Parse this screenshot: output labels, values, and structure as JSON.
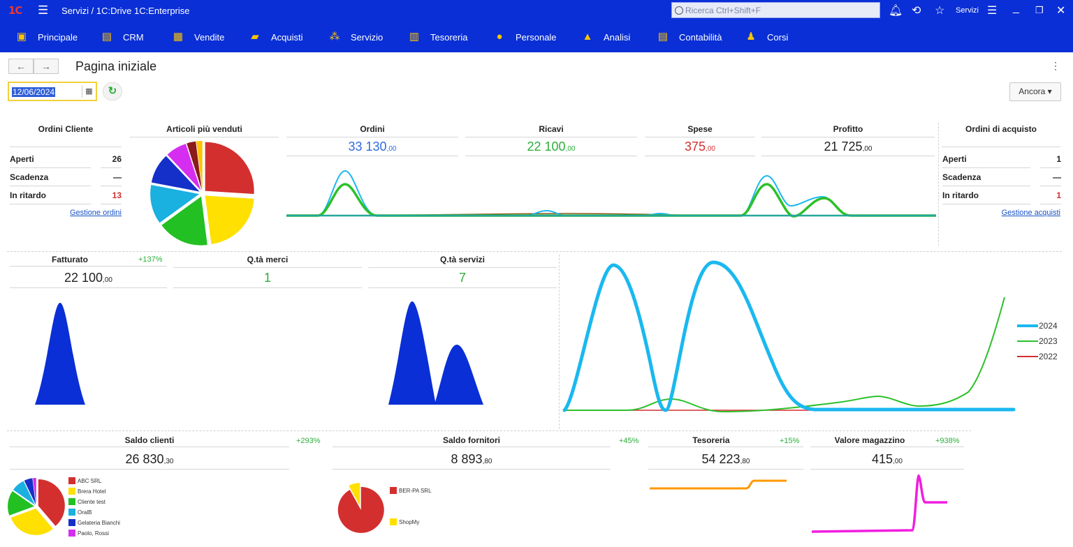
{
  "titlebar": {
    "logo": "1C",
    "title": "Servizi / 1C:Drive 1C:Enterprise",
    "search_placeholder": "Ricerca Ctrl+Shift+F",
    "services_label": "Servizi"
  },
  "menu": [
    {
      "label": "Principale",
      "icon": "briefcase-icon",
      "color": "#ffc400"
    },
    {
      "label": "CRM",
      "icon": "contacts-icon",
      "color": "#ffc400"
    },
    {
      "label": "Vendite",
      "icon": "cash-register-icon",
      "color": "#ffc400"
    },
    {
      "label": "Acquisti",
      "icon": "truck-icon",
      "color": "#ffc400"
    },
    {
      "label": "Servizio",
      "icon": "people-tree-icon",
      "color": "#ffc400"
    },
    {
      "label": "Tesoreria",
      "icon": "money-icon",
      "color": "#ffc400"
    },
    {
      "label": "Personale",
      "icon": "staff-icon",
      "color": "#ffc400"
    },
    {
      "label": "Analisi",
      "icon": "chart-icon",
      "color": "#ffc400"
    },
    {
      "label": "Contabilità",
      "icon": "ledger-icon",
      "color": "#ffc400"
    },
    {
      "label": "Corsi",
      "icon": "student-icon",
      "color": "#ffc400"
    }
  ],
  "page": {
    "title": "Pagina iniziale",
    "date": "12/06/2024",
    "more_label": "Ancora"
  },
  "ordini_cliente": {
    "title": "Ordini Cliente",
    "rows": [
      {
        "label": "Aperti",
        "value": "26",
        "color": "#222222"
      },
      {
        "label": "Scadenza",
        "value": "—",
        "color": "#222222"
      },
      {
        "label": "In ritardo",
        "value": "13",
        "color": "#d32f2f"
      }
    ],
    "link": "Gestione ordini"
  },
  "articoli": {
    "title": "Articoli più venduti"
  },
  "kpi_top": [
    {
      "title": "Ordini",
      "int": "33 130",
      "dec": ",00",
      "color": "#2f6be0"
    },
    {
      "title": "Ricavi",
      "int": "22 100",
      "dec": ",00",
      "color": "#2cae3a"
    },
    {
      "title": "Spese",
      "int": "375",
      "dec": ",00",
      "color": "#d32f2f"
    },
    {
      "title": "Profitto",
      "int": "21 725",
      "dec": ",00",
      "color": "#222222"
    }
  ],
  "ordini_acquisto": {
    "title": "Ordini di acquisto",
    "rows": [
      {
        "label": "Aperti",
        "value": "1",
        "color": "#222222"
      },
      {
        "label": "Scadenza",
        "value": "—",
        "color": "#222222"
      },
      {
        "label": "In ritardo",
        "value": "1",
        "color": "#d32f2f"
      }
    ],
    "link": "Gestione acquisti"
  },
  "fatturato": {
    "title": "Fatturato",
    "pct": "+137%",
    "int": "22 100",
    "dec": ",00"
  },
  "qta_merci": {
    "title": "Q.tà merci",
    "value": "1"
  },
  "qta_servizi": {
    "title": "Q.tà servizi",
    "value": "7"
  },
  "big_chart_legend": [
    {
      "name": "2024",
      "color": "#1ab8f0"
    },
    {
      "name": "2023",
      "color": "#2cc02a"
    },
    {
      "name": "2022",
      "color": "#d32f2f"
    }
  ],
  "saldo_clienti": {
    "title": "Saldo clienti",
    "pct": "+293%",
    "int": "26 830",
    "dec": ",30",
    "legend": [
      {
        "name": "ABC SRL",
        "color": "#d32f2f"
      },
      {
        "name": "Brera Hotel",
        "color": "#ffe000"
      },
      {
        "name": "Cliente test",
        "color": "#22c022"
      },
      {
        "name": "OralB",
        "color": "#1ab0e0"
      },
      {
        "name": "Gelateria Bianchi",
        "color": "#1530c8"
      },
      {
        "name": "Paolo, Rossi",
        "color": "#d52ef0"
      }
    ]
  },
  "saldo_fornitori": {
    "title": "Saldo fornitori",
    "pct": "+45%",
    "int": "8 893",
    "dec": ",80",
    "legend": [
      {
        "name": "BER-PA SRL",
        "color": "#d32f2f"
      },
      {
        "name": "ShopMy",
        "color": "#ffe000"
      }
    ]
  },
  "tesoreria": {
    "title": "Tesoreria",
    "pct": "+15%",
    "int": "54 223",
    "dec": ",80"
  },
  "magazzino": {
    "title": "Valore magazzino",
    "pct": "+938%",
    "int": "415",
    "dec": ",00"
  }
}
